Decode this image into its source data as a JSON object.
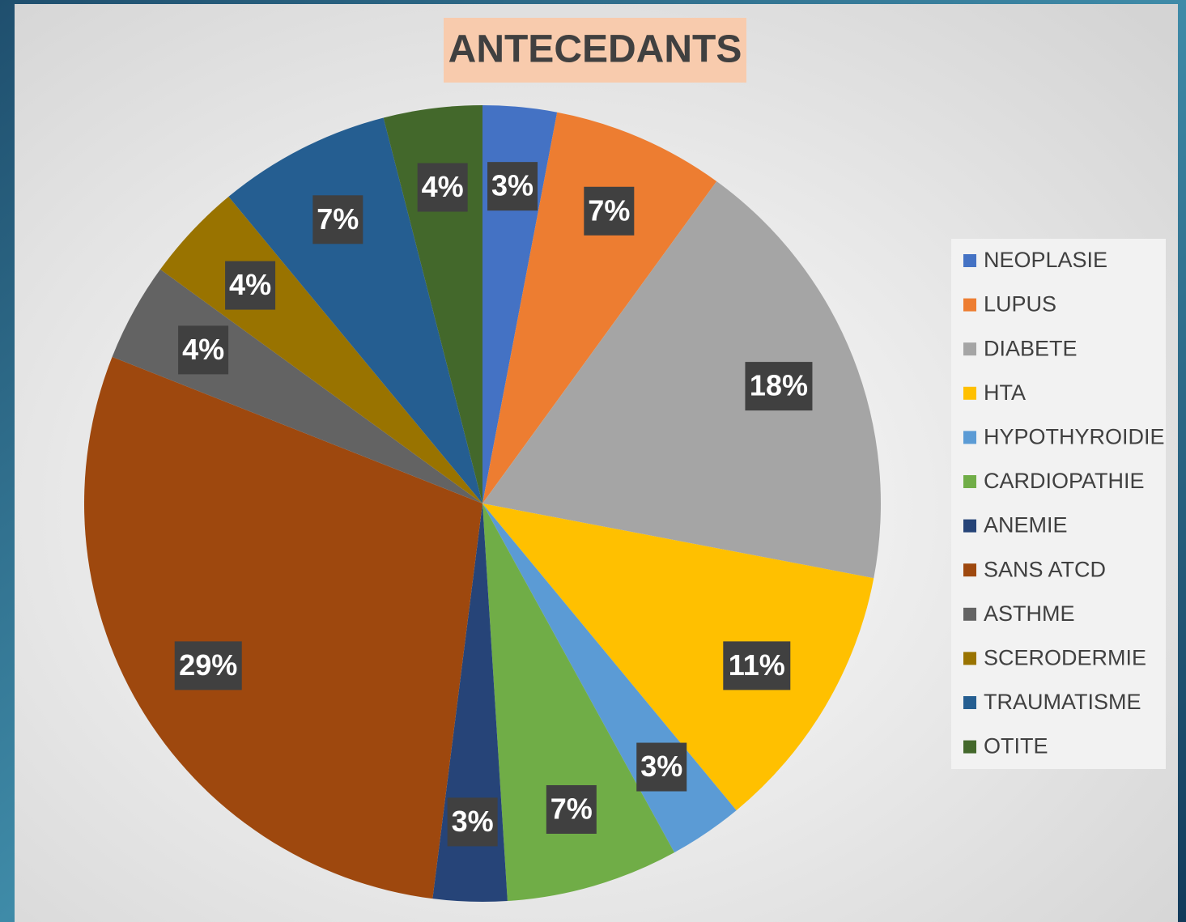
{
  "chart_data": {
    "type": "pie",
    "title": "ANTECEDANTS",
    "categories": [
      "NEOPLASIE",
      "LUPUS",
      "DIABETE",
      "HTA",
      "HYPOTHYROIDIE",
      "CARDIOPATHIE",
      "ANEMIE",
      "SANS ATCD",
      "ASTHME",
      "SCERODERMIE",
      "TRAUMATISME",
      "OTITE"
    ],
    "values": [
      3,
      7,
      18,
      11,
      3,
      7,
      3,
      29,
      4,
      4,
      7,
      4
    ],
    "value_labels": [
      "3%",
      "7%",
      "18%",
      "11%",
      "3%",
      "7%",
      "3%",
      "29%",
      "4%",
      "4%",
      "7%",
      "4%"
    ],
    "colors": [
      "#4472c4",
      "#ed7d31",
      "#a5a5a5",
      "#ffc000",
      "#5b9bd5",
      "#70ad47",
      "#264478",
      "#9e480e",
      "#636363",
      "#997300",
      "#255e91",
      "#43682b"
    ],
    "legend": "right"
  }
}
